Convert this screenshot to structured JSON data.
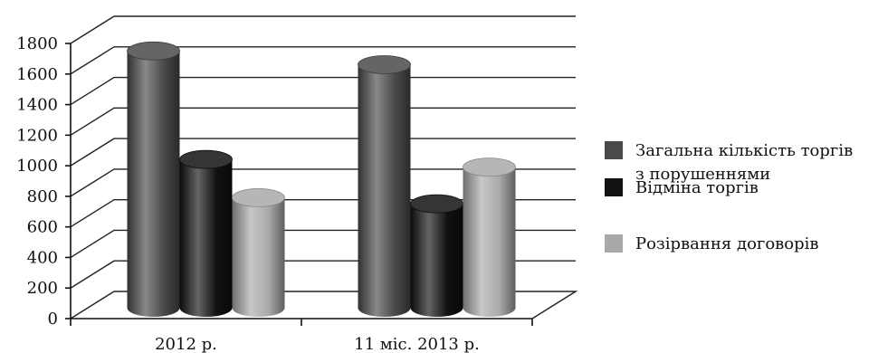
{
  "chart_data": {
    "type": "bar",
    "style": "3d-cylinder",
    "categories": [
      "2012 р.",
      "11 міс. 2013 р."
    ],
    "series": [
      {
        "name": "Загальна кількість торгів з порушеннями",
        "legend_lines": [
          "Загальна кількість торгів",
          "з порушеннями"
        ],
        "values": [
          1680,
          1590
        ],
        "color": "#4a4a4a"
      },
      {
        "name": "Відміна торгів",
        "legend_lines": [
          "Відміна торгів"
        ],
        "values": [
          970,
          680
        ],
        "color": "#111111"
      },
      {
        "name": "Розірвання договорів",
        "legend_lines": [
          "Розірвання договорів"
        ],
        "values": [
          720,
          920
        ],
        "color": "#a9a9a9"
      }
    ],
    "yticks": [
      "0",
      "200",
      "400",
      "600",
      "800",
      "1000",
      "1200",
      "1400",
      "1600",
      "1800"
    ],
    "ylim": [
      0,
      1800
    ],
    "grid": true,
    "legend_position": "right"
  }
}
